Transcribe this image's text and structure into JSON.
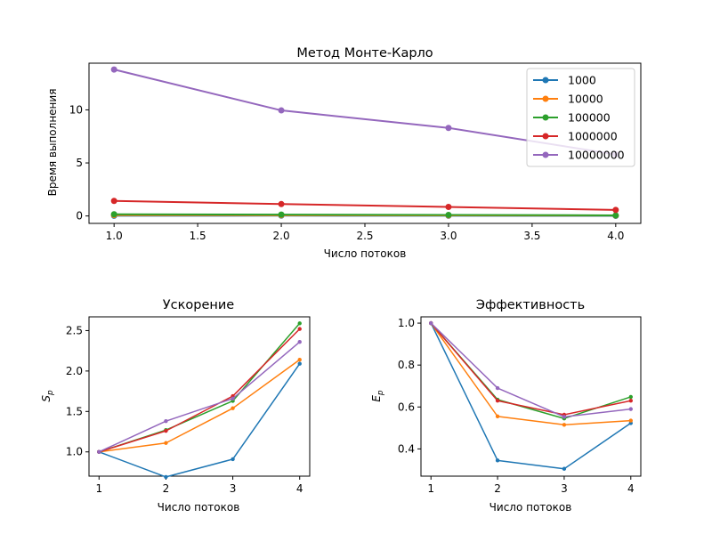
{
  "colors": [
    "#1f77b4",
    "#ff7f0e",
    "#2ca02c",
    "#d62728",
    "#9467bd"
  ],
  "chart_data": [
    {
      "type": "line",
      "title": "Метод Монте-Карло",
      "xlabel": "Число потоков",
      "ylabel": "Время выполнения",
      "x": [
        1,
        2,
        3,
        4
      ],
      "xlim": [
        0.85,
        4.15
      ],
      "ylim": [
        -0.7,
        14.4
      ],
      "xticks": [
        1.0,
        1.5,
        2.0,
        2.5,
        3.0,
        3.5,
        4.0
      ],
      "xtick_labels": [
        "1.0",
        "1.5",
        "2.0",
        "2.5",
        "3.0",
        "3.5",
        "4.0"
      ],
      "yticks": [
        0,
        5,
        10
      ],
      "ytick_labels": [
        "0",
        "5",
        "10"
      ],
      "grid": false,
      "legend": "top-right",
      "series": [
        {
          "name": "1000",
          "values": [
            0.02,
            0.03,
            0.02,
            0.01
          ]
        },
        {
          "name": "10000",
          "values": [
            0.08,
            0.07,
            0.05,
            0.04
          ]
        },
        {
          "name": "100000",
          "values": [
            0.16,
            0.13,
            0.1,
            0.06
          ]
        },
        {
          "name": "1000000",
          "values": [
            1.42,
            1.12,
            0.85,
            0.57
          ]
        },
        {
          "name": "10000000",
          "values": [
            13.8,
            9.95,
            8.3,
            5.8
          ]
        }
      ]
    },
    {
      "type": "line",
      "title": "Ускорение",
      "xlabel": "Число потоков",
      "ylabel": "S_p",
      "x": [
        1,
        2,
        3,
        4
      ],
      "xlim": [
        0.85,
        4.15
      ],
      "ylim": [
        0.7,
        2.67
      ],
      "xticks": [
        1,
        2,
        3,
        4
      ],
      "xtick_labels": [
        "1",
        "2",
        "3",
        "4"
      ],
      "yticks": [
        1.0,
        1.5,
        2.0,
        2.5
      ],
      "ytick_labels": [
        "1.0",
        "1.5",
        "2.0",
        "2.5"
      ],
      "grid": false,
      "series": [
        {
          "values": [
            1.0,
            0.69,
            0.91,
            2.09
          ]
        },
        {
          "values": [
            1.0,
            1.11,
            1.54,
            2.14
          ]
        },
        {
          "values": [
            1.0,
            1.27,
            1.63,
            2.59
          ]
        },
        {
          "values": [
            1.0,
            1.26,
            1.69,
            2.52
          ]
        },
        {
          "values": [
            1.0,
            1.38,
            1.66,
            2.36
          ]
        }
      ]
    },
    {
      "type": "line",
      "title": "Эффективность",
      "xlabel": "Число потоков",
      "ylabel": "E_p",
      "x": [
        1,
        2,
        3,
        4
      ],
      "xlim": [
        0.85,
        4.15
      ],
      "ylim": [
        0.27,
        1.03
      ],
      "xticks": [
        1,
        2,
        3,
        4
      ],
      "xtick_labels": [
        "1",
        "2",
        "3",
        "4"
      ],
      "yticks": [
        0.4,
        0.6,
        0.8,
        1.0
      ],
      "ytick_labels": [
        "0.4",
        "0.6",
        "0.8",
        "1.0"
      ],
      "grid": false,
      "series": [
        {
          "values": [
            1.0,
            0.345,
            0.305,
            0.523
          ]
        },
        {
          "values": [
            1.0,
            0.555,
            0.515,
            0.535
          ]
        },
        {
          "values": [
            1.0,
            0.635,
            0.545,
            0.648
          ]
        },
        {
          "values": [
            1.0,
            0.63,
            0.563,
            0.63
          ]
        },
        {
          "values": [
            1.0,
            0.69,
            0.553,
            0.59
          ]
        }
      ]
    }
  ]
}
